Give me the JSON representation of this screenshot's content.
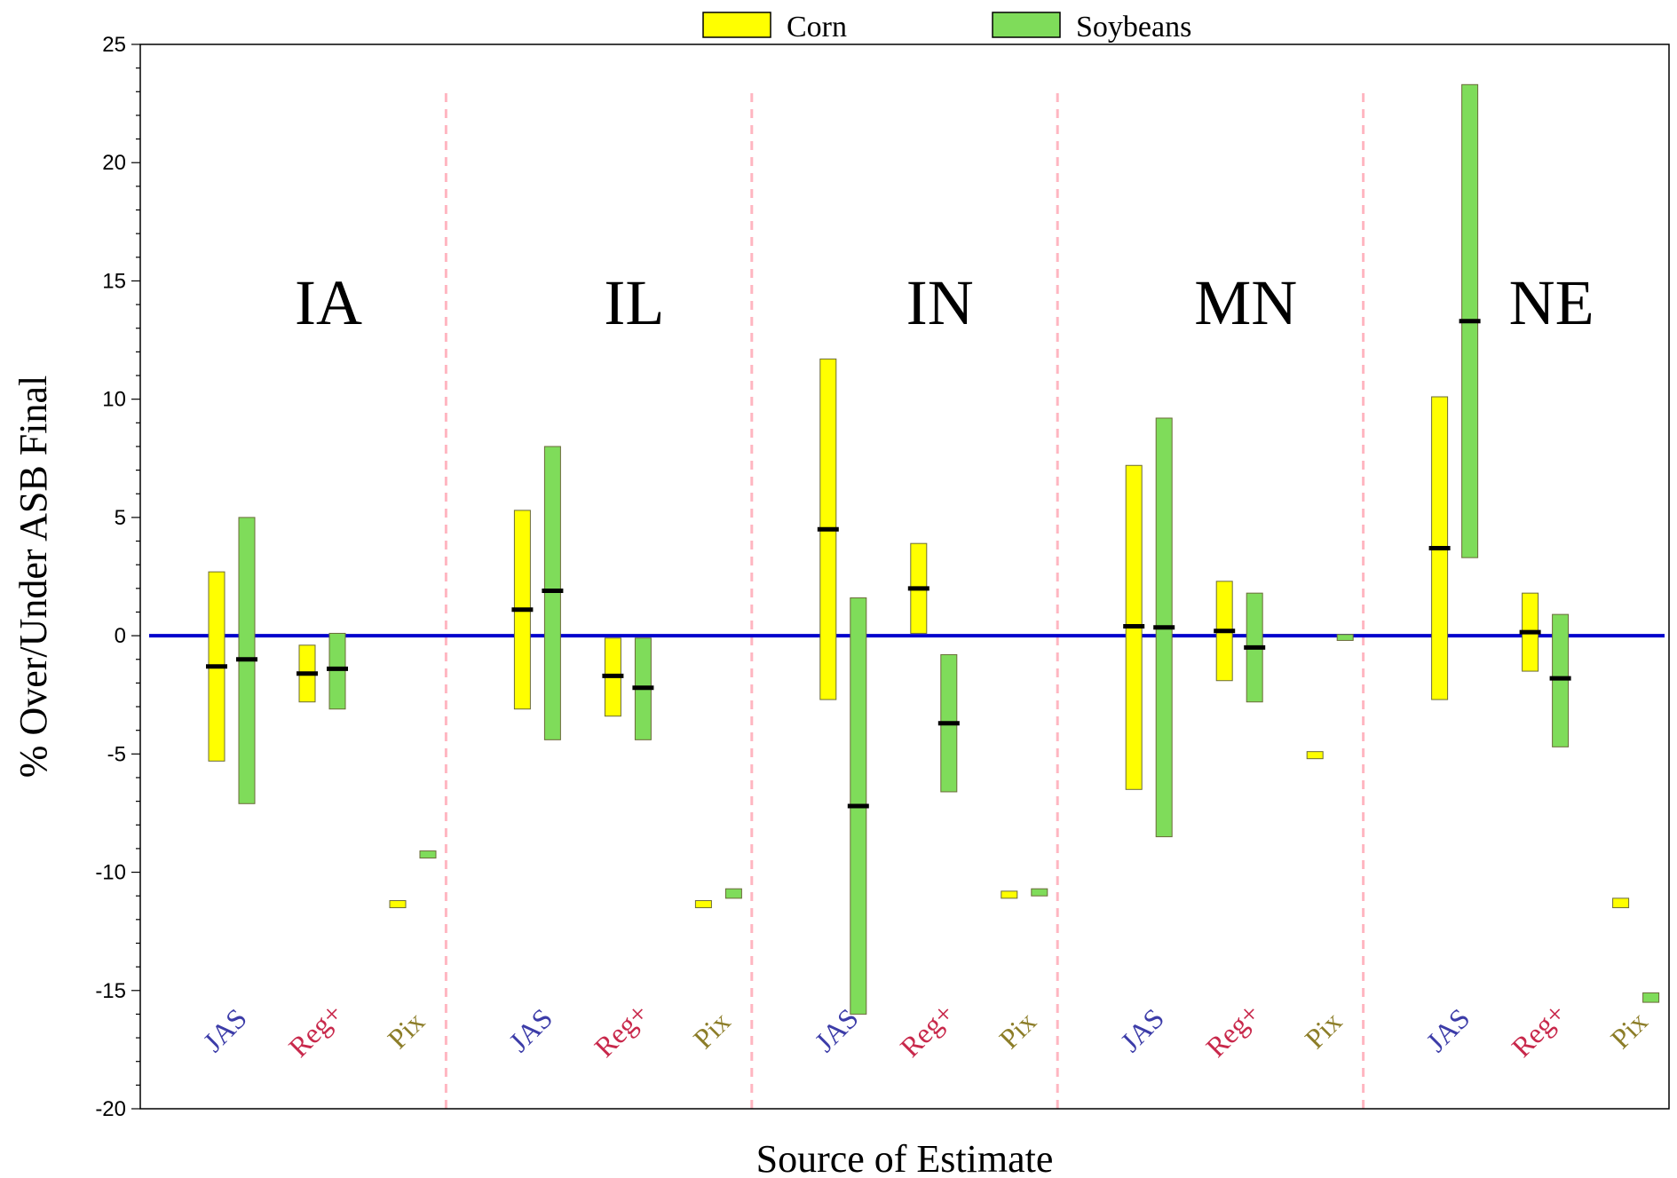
{
  "chart_data": {
    "type": "floating-bar",
    "xlabel": "Source of Estimate",
    "ylabel": "% Over/Under ASB Final",
    "ylim": [
      -20,
      25
    ],
    "yticks": [
      -20,
      -15,
      -10,
      -5,
      0,
      5,
      10,
      15,
      20,
      25
    ],
    "minor_tick_step": 1,
    "reference_line": {
      "value": 0,
      "color": "#0000cc"
    },
    "divider_color": "#ffb6c1",
    "legend": {
      "placement": "top-center",
      "entries": [
        {
          "name": "Corn",
          "color": "#ffff00"
        },
        {
          "name": "Soybeans",
          "color": "#7fdc5a"
        }
      ]
    },
    "sources": [
      {
        "name": "JAS",
        "color": "#3c3ca8"
      },
      {
        "name": "Reg+",
        "color": "#c8284b"
      },
      {
        "name": "Pix",
        "color": "#8c7d28"
      }
    ],
    "groups": [
      {
        "state": "IA",
        "estimates": [
          {
            "source": "JAS",
            "crop": "Corn",
            "low": -5.3,
            "high": 2.7,
            "mid": -1.3
          },
          {
            "source": "JAS",
            "crop": "Soybeans",
            "low": -7.1,
            "high": 5.0,
            "mid": -1.0
          },
          {
            "source": "Reg+",
            "crop": "Corn",
            "low": -2.8,
            "high": -0.4,
            "mid": -1.6
          },
          {
            "source": "Reg+",
            "crop": "Soybeans",
            "low": -3.1,
            "high": 0.1,
            "mid": -1.4
          },
          {
            "source": "Pix",
            "crop": "Corn",
            "low": -11.5,
            "high": -11.2
          },
          {
            "source": "Pix",
            "crop": "Soybeans",
            "low": -9.4,
            "high": -9.1
          }
        ]
      },
      {
        "state": "IL",
        "estimates": [
          {
            "source": "JAS",
            "crop": "Corn",
            "low": -3.1,
            "high": 5.3,
            "mid": 1.1
          },
          {
            "source": "JAS",
            "crop": "Soybeans",
            "low": -4.4,
            "high": 8.0,
            "mid": 1.9
          },
          {
            "source": "Reg+",
            "crop": "Corn",
            "low": -3.4,
            "high": -0.1,
            "mid": -1.7
          },
          {
            "source": "Reg+",
            "crop": "Soybeans",
            "low": -4.4,
            "high": -0.1,
            "mid": -2.2
          },
          {
            "source": "Pix",
            "crop": "Corn",
            "low": -11.5,
            "high": -11.2
          },
          {
            "source": "Pix",
            "crop": "Soybeans",
            "low": -11.1,
            "high": -10.7
          }
        ]
      },
      {
        "state": "IN",
        "estimates": [
          {
            "source": "JAS",
            "crop": "Corn",
            "low": -2.7,
            "high": 11.7,
            "mid": 4.5
          },
          {
            "source": "JAS",
            "crop": "Soybeans",
            "low": -16.0,
            "high": 1.6,
            "mid": -7.2
          },
          {
            "source": "Reg+",
            "crop": "Corn",
            "low": 0.1,
            "high": 3.9,
            "mid": 2.0
          },
          {
            "source": "Reg+",
            "crop": "Soybeans",
            "low": -6.6,
            "high": -0.8,
            "mid": -3.7
          },
          {
            "source": "Pix",
            "crop": "Corn",
            "low": -11.1,
            "high": -10.8
          },
          {
            "source": "Pix",
            "crop": "Soybeans",
            "low": -11.0,
            "high": -10.7
          }
        ]
      },
      {
        "state": "MN",
        "estimates": [
          {
            "source": "JAS",
            "crop": "Corn",
            "low": -6.5,
            "high": 7.2,
            "mid": 0.4
          },
          {
            "source": "JAS",
            "crop": "Soybeans",
            "low": -8.5,
            "high": 9.2,
            "mid": 0.35
          },
          {
            "source": "Reg+",
            "crop": "Corn",
            "low": -1.9,
            "high": 2.3,
            "mid": 0.2
          },
          {
            "source": "Reg+",
            "crop": "Soybeans",
            "low": -2.8,
            "high": 1.8,
            "mid": -0.5
          },
          {
            "source": "Pix",
            "crop": "Corn",
            "low": -5.2,
            "high": -4.9
          },
          {
            "source": "Pix",
            "crop": "Soybeans",
            "low": -0.2,
            "high": 0.05
          }
        ]
      },
      {
        "state": "NE",
        "estimates": [
          {
            "source": "JAS",
            "crop": "Corn",
            "low": -2.7,
            "high": 10.1,
            "mid": 3.7
          },
          {
            "source": "JAS",
            "crop": "Soybeans",
            "low": 3.3,
            "high": 23.3,
            "mid": 13.3
          },
          {
            "source": "Reg+",
            "crop": "Corn",
            "low": -1.5,
            "high": 1.8,
            "mid": 0.15
          },
          {
            "source": "Reg+",
            "crop": "Soybeans",
            "low": -4.7,
            "high": 0.9,
            "mid": -1.8
          },
          {
            "source": "Pix",
            "crop": "Corn",
            "low": -11.5,
            "high": -11.1
          },
          {
            "source": "Pix",
            "crop": "Soybeans",
            "low": -15.5,
            "high": -15.1
          }
        ]
      }
    ]
  }
}
